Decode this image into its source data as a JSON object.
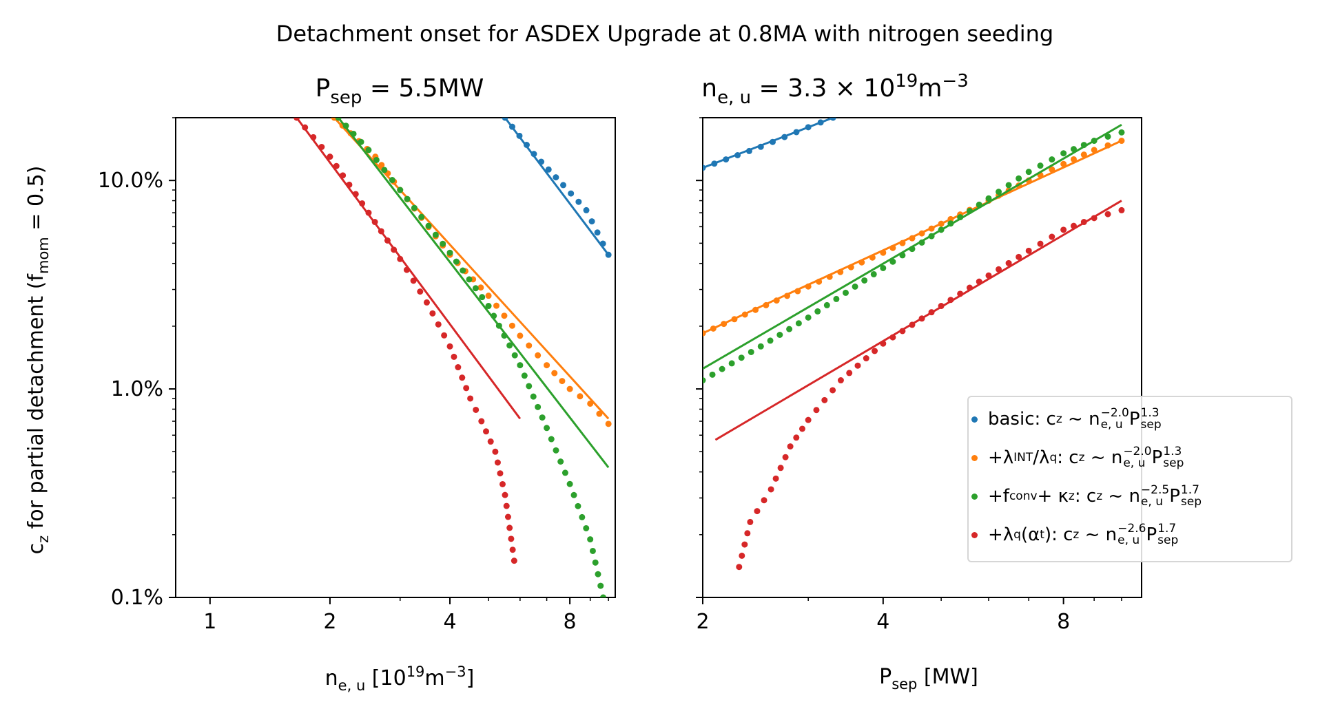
{
  "figure": {
    "suptitle": "Detachment onset for ASDEX Upgrade at 0.8MA with nitrogen seeding",
    "ylabel_main": "c",
    "ylabel_sub": "z",
    "ylabel_rest": " for partial detachment (f",
    "ylabel_sub2": "mom",
    "ylabel_end": " = 0.5)"
  },
  "left_panel": {
    "title_main": "P",
    "title_sub": "sep",
    "title_rest": " = 5.5MW",
    "xlabel_main": "n",
    "xlabel_sub": "e, u",
    "xlabel_rest": " [10",
    "xlabel_sup": "19",
    "xlabel_end": "m",
    "xlabel_sup2": "−3",
    "xlabel_close": "]"
  },
  "right_panel": {
    "title_main": "n",
    "title_sub": "e, u",
    "title_rest": " = 3.3 × 10",
    "title_sup": "19",
    "title_end": "m",
    "title_sup2": "−3",
    "xlabel_main": "P",
    "xlabel_sub": "sep",
    "xlabel_rest": " [MW]"
  },
  "legend": {
    "items": [
      {
        "prefix": "basic",
        "exp_n": "−2.0",
        "exp_p": "1.3",
        "color": "#1f77b4"
      },
      {
        "prefix": "+λ",
        "prefix_sub": "INT",
        "prefix_mid": "/λ",
        "prefix_sub2": "q",
        "exp_n": "−2.0",
        "exp_p": "1.3",
        "color": "#ff7f0e"
      },
      {
        "prefix": "+f",
        "prefix_sub": "conv",
        "prefix_mid": " + κ",
        "prefix_sub2": "z",
        "exp_n": "−2.5",
        "exp_p": "1.7",
        "color": "#2ca02c"
      },
      {
        "prefix": "+λ",
        "prefix_sub": "q",
        "prefix_mid": "(α",
        "prefix_sub2": "t",
        "prefix_end": ")",
        "exp_n": "−2.6",
        "exp_p": "1.7",
        "color": "#d62728"
      }
    ]
  },
  "chart_data": [
    {
      "type": "scatter",
      "panel": "left",
      "x_label": "n_e,u [10^19 m^-3]",
      "y_label": "c_z for partial detachment (f_mom = 0.5)",
      "x_scale": "log",
      "y_scale": "log",
      "xlim": [
        0.82,
        10.4
      ],
      "ylim": [
        0.001,
        0.2
      ],
      "x_ticks": [
        1,
        2,
        4,
        8
      ],
      "x_tick_labels": [
        "1",
        "2",
        "4",
        "8"
      ],
      "y_ticks": [
        0.001,
        0.01,
        0.1
      ],
      "y_tick_labels": [
        "0.1%",
        "1.0%",
        "10.0%"
      ],
      "series": [
        {
          "name": "basic",
          "color": "#1f77b4",
          "exponent": -2.0,
          "points": [
            [
              5.5,
              0.2
            ],
            [
              6.5,
              0.134
            ],
            [
              7.7,
              0.095
            ],
            [
              8.8,
              0.072
            ],
            [
              10.0,
              0.044
            ]
          ],
          "fit": [
            [
              5.5,
              0.2
            ],
            [
              10.0,
              0.044
            ]
          ]
        },
        {
          "name": "+λINT/λq",
          "color": "#ff7f0e",
          "exponent": -2.0,
          "points": [
            [
              2.05,
              0.2
            ],
            [
              2.6,
              0.13
            ],
            [
              3.0,
              0.09
            ],
            [
              4.0,
              0.044
            ],
            [
              5.0,
              0.028
            ],
            [
              6.0,
              0.018
            ],
            [
              7.0,
              0.013
            ],
            [
              8.0,
              0.01
            ],
            [
              9.0,
              0.0085
            ],
            [
              10.0,
              0.0068
            ]
          ],
          "fit": [
            [
              2.05,
              0.2
            ],
            [
              10.0,
              0.0072
            ]
          ]
        },
        {
          "name": "+fconv + κz",
          "color": "#2ca02c",
          "exponent": -2.5,
          "points": [
            [
              2.1,
              0.2
            ],
            [
              2.5,
              0.14
            ],
            [
              3.0,
              0.09
            ],
            [
              4.0,
              0.045
            ],
            [
              5.0,
              0.025
            ],
            [
              6.0,
              0.013
            ],
            [
              7.0,
              0.0065
            ],
            [
              8.0,
              0.0035
            ],
            [
              9.0,
              0.0019
            ],
            [
              9.7,
              0.001
            ]
          ],
          "fit": [
            [
              2.1,
              0.2
            ],
            [
              10.0,
              0.0042
            ]
          ]
        },
        {
          "name": "+λq(αt)",
          "color": "#d62728",
          "exponent": -2.6,
          "points": [
            [
              1.65,
              0.2
            ],
            [
              2.0,
              0.13
            ],
            [
              2.5,
              0.07
            ],
            [
              3.0,
              0.042
            ],
            [
              3.5,
              0.026
            ],
            [
              4.0,
              0.016
            ],
            [
              4.5,
              0.009
            ],
            [
              4.8,
              0.007
            ],
            [
              5.2,
              0.005
            ],
            [
              5.5,
              0.0031
            ],
            [
              5.8,
              0.0015
            ]
          ],
          "fit": [
            [
              1.65,
              0.2
            ],
            [
              6.0,
              0.0072
            ]
          ]
        }
      ]
    },
    {
      "type": "scatter",
      "panel": "right",
      "x_label": "P_sep [MW]",
      "x_scale": "log",
      "y_scale": "log",
      "xlim": [
        2.0,
        10.8
      ],
      "ylim": [
        0.001,
        0.2
      ],
      "x_ticks": [
        2,
        4,
        8
      ],
      "x_tick_labels": [
        "2",
        "4",
        "8"
      ],
      "series": [
        {
          "name": "basic",
          "color": "#1f77b4",
          "exponent": 1.3,
          "points": [
            [
              2.0,
              0.115
            ],
            [
              2.5,
              0.145
            ],
            [
              3.0,
              0.18
            ],
            [
              3.3,
              0.2
            ]
          ],
          "fit": [
            [
              2.0,
              0.115
            ],
            [
              3.3,
              0.2
            ]
          ]
        },
        {
          "name": "+λINT/λq",
          "color": "#ff7f0e",
          "exponent": 1.3,
          "points": [
            [
              2.0,
              0.0185
            ],
            [
              3.0,
              0.031
            ],
            [
              4.0,
              0.045
            ],
            [
              5.0,
              0.062
            ],
            [
              6.0,
              0.08
            ],
            [
              7.0,
              0.1
            ],
            [
              8.0,
              0.12
            ],
            [
              9.0,
              0.14
            ],
            [
              10.0,
              0.155
            ]
          ],
          "fit": [
            [
              2.0,
              0.0185
            ],
            [
              10.0,
              0.155
            ]
          ]
        },
        {
          "name": "+fconv + κz",
          "color": "#2ca02c",
          "exponent": 1.7,
          "points": [
            [
              2.0,
              0.011
            ],
            [
              2.5,
              0.016
            ],
            [
              3.0,
              0.022
            ],
            [
              4.0,
              0.038
            ],
            [
              5.0,
              0.058
            ],
            [
              6.0,
              0.082
            ],
            [
              7.0,
              0.11
            ],
            [
              8.0,
              0.135
            ],
            [
              9.0,
              0.155
            ],
            [
              10.0,
              0.17
            ]
          ],
          "fit": [
            [
              2.0,
              0.0125
            ],
            [
              10.0,
              0.185
            ]
          ]
        },
        {
          "name": "+λq(αt)",
          "color": "#d62728",
          "exponent": 1.7,
          "points": [
            [
              2.3,
              0.0014
            ],
            [
              2.4,
              0.0023
            ],
            [
              2.6,
              0.0033
            ],
            [
              2.8,
              0.0053
            ],
            [
              3.0,
              0.0071
            ],
            [
              3.4,
              0.011
            ],
            [
              4.0,
              0.0165
            ],
            [
              5.0,
              0.025
            ],
            [
              6.0,
              0.035
            ],
            [
              7.0,
              0.046
            ],
            [
              8.0,
              0.058
            ],
            [
              9.0,
              0.066
            ],
            [
              10.0,
              0.072
            ]
          ],
          "fit": [
            [
              2.1,
              0.0057
            ],
            [
              10.0,
              0.08
            ]
          ]
        }
      ]
    }
  ]
}
